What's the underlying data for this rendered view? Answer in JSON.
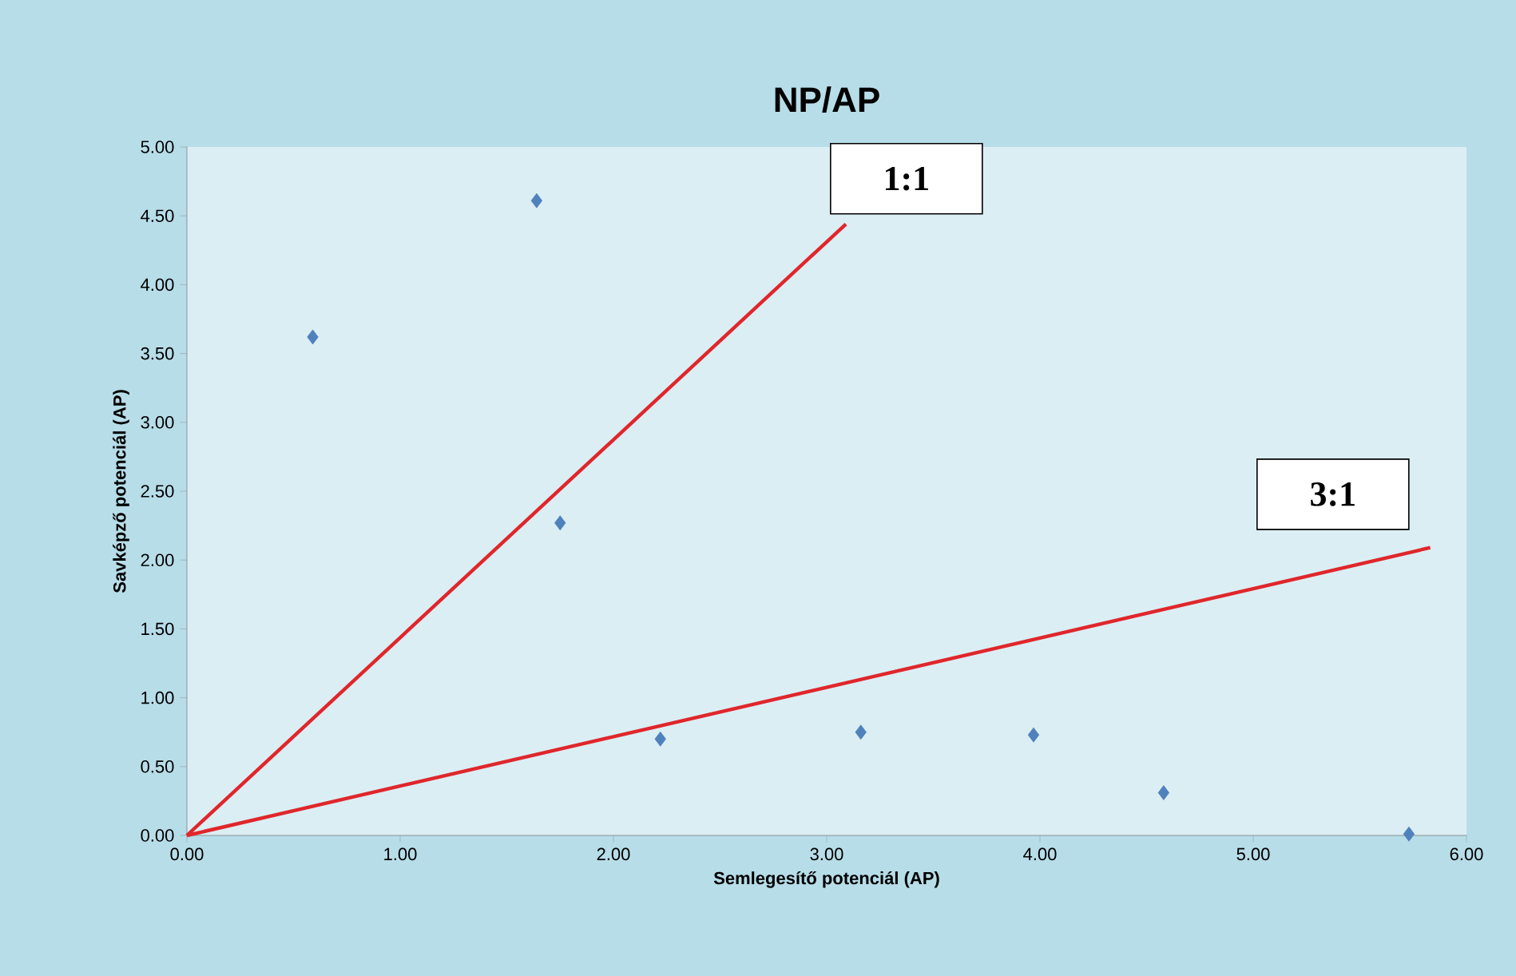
{
  "chart_data": {
    "type": "scatter",
    "title": "NP/AP",
    "xlabel": "Semlegesítő potenciál (AP)",
    "ylabel": "Savképző potenciál (AP)",
    "xlim": [
      0,
      6
    ],
    "ylim": [
      0,
      5
    ],
    "xticks": [
      {
        "value": 0,
        "label": "0.00"
      },
      {
        "value": 1,
        "label": "1.00"
      },
      {
        "value": 2,
        "label": "2.00"
      },
      {
        "value": 3,
        "label": "3.00"
      },
      {
        "value": 4,
        "label": "4.00"
      },
      {
        "value": 5,
        "label": "5.00"
      },
      {
        "value": 6,
        "label": "6.00"
      }
    ],
    "yticks": [
      {
        "value": 0,
        "label": "0.00"
      },
      {
        "value": 0.5,
        "label": "0.50"
      },
      {
        "value": 1,
        "label": "1.00"
      },
      {
        "value": 1.5,
        "label": "1.50"
      },
      {
        "value": 2,
        "label": "2.00"
      },
      {
        "value": 2.5,
        "label": "2.50"
      },
      {
        "value": 3,
        "label": "3.00"
      },
      {
        "value": 3.5,
        "label": "3.50"
      },
      {
        "value": 4,
        "label": "4.00"
      },
      {
        "value": 4.5,
        "label": "4.50"
      },
      {
        "value": 5,
        "label": "5.00"
      }
    ],
    "marker": "diamond",
    "series": [
      {
        "color": "#4f81bd",
        "x": [
          0.59,
          1.64,
          1.75,
          2.22,
          3.16,
          3.97,
          4.58,
          5.73
        ],
        "values": [
          3.62,
          4.61,
          2.27,
          0.7,
          0.75,
          0.73,
          0.31,
          0.01
        ]
      },
      {
        "type": "line",
        "marker": "none",
        "color": "#e0262b",
        "x": [
          0,
          3.09
        ],
        "values": [
          0,
          4.44
        ]
      },
      {
        "type": "line",
        "marker": "none",
        "color": "#e0262b",
        "x": [
          0,
          5.83
        ],
        "values": [
          0,
          2.09
        ]
      }
    ],
    "annotations": [
      "1:1",
      "3:1"
    ]
  }
}
